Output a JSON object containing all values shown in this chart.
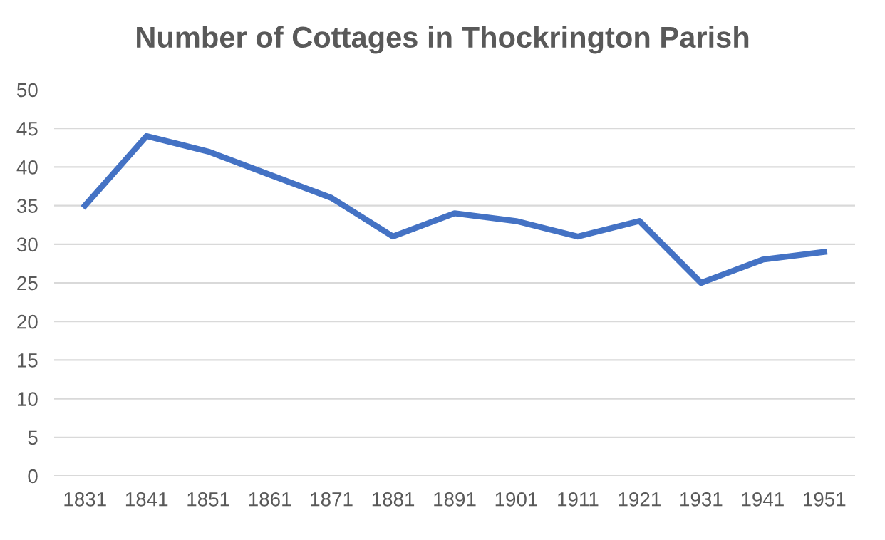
{
  "chart_data": {
    "type": "line",
    "title": "Number of Cottages in Thockrington Parish",
    "categories": [
      "1831",
      "1841",
      "1851",
      "1861",
      "1871",
      "1881",
      "1891",
      "1901",
      "1911",
      "1921",
      "1931",
      "1941",
      "1951"
    ],
    "series": [
      {
        "color": "#4472c4",
        "values": [
          35,
          44,
          42,
          39,
          36,
          31,
          34,
          33,
          31,
          33,
          25,
          28,
          29
        ]
      }
    ],
    "ylim": [
      0,
      50
    ],
    "yticks": [
      0,
      5,
      10,
      15,
      20,
      25,
      30,
      35,
      40,
      45,
      50
    ],
    "grid": "y",
    "legend": false,
    "marker": "none",
    "line_style": "solid"
  }
}
